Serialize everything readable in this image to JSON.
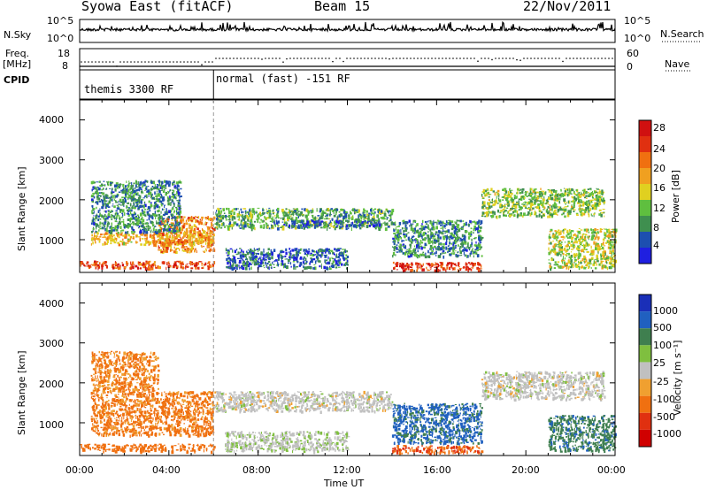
{
  "header": {
    "station": "Syowa East (fitACF)",
    "beam": "Beam 15",
    "date": "22/Nov/2011"
  },
  "top_panels": {
    "nsky_label": "N.Sky",
    "nsky_ticks": [
      "10^5",
      "10^0"
    ],
    "nsearch_label": "N.Search",
    "nsearch_ticks": [
      "10^5",
      "10^0"
    ],
    "freq_label_1": "Freq.",
    "freq_label_2": "[MHz]",
    "freq_ticks": [
      "18",
      "8"
    ],
    "nave_label": "Nave",
    "nave_ticks": [
      "60",
      "0"
    ],
    "cpid_label": "CPID",
    "cpid_segments": [
      {
        "label": "themis 3300 RF",
        "start": 0,
        "end": 6.0
      },
      {
        "label": "normal (fast) -151 RF",
        "start": 6.0,
        "end": 24
      }
    ]
  },
  "colors": {
    "power_scale": [
      "#1f1fe0",
      "#1d4fb0",
      "#3f8f4f",
      "#5fbf3f",
      "#e0d020",
      "#f0a020",
      "#f07010",
      "#e03010",
      "#d01010"
    ],
    "velocity_scale": [
      "#1a2fb8",
      "#2060c0",
      "#3f7f4f",
      "#7fbf3f",
      "#c0c0c0",
      "#f0a030",
      "#f07010",
      "#e03010",
      "#d00000"
    ]
  },
  "chart_data": [
    {
      "type": "heatmap",
      "panel": "power",
      "ylabel": "Slant Range [km]",
      "yticks": [
        "4000",
        "3000",
        "2000",
        "1000"
      ],
      "ylim": [
        180,
        4500
      ],
      "xlim": [
        0,
        24
      ],
      "colorbar_label": "Power [dB]",
      "colorbar_ticks": [
        "28",
        "24",
        "20",
        "16",
        "12",
        "8",
        "4"
      ],
      "colorbar_range": [
        0,
        30
      ],
      "blobs": [
        {
          "t0": 0.0,
          "t1": 6.0,
          "r0": 300,
          "r1": 480,
          "value": 24
        },
        {
          "t0": 0.5,
          "t1": 6.0,
          "r0": 900,
          "r1": 1200,
          "value": 18
        },
        {
          "t0": 3.5,
          "t1": 6.0,
          "r0": 700,
          "r1": 1600,
          "value": 20
        },
        {
          "t0": 0.5,
          "t1": 4.5,
          "r0": 1200,
          "r1": 2500,
          "value": 8
        },
        {
          "t0": 6.0,
          "t1": 14.0,
          "r0": 1300,
          "r1": 1800,
          "value": 10
        },
        {
          "t0": 8.5,
          "t1": 13.5,
          "r0": 1350,
          "r1": 1500,
          "value": 6
        },
        {
          "t0": 14.0,
          "t1": 18.0,
          "r0": 250,
          "r1": 450,
          "value": 26
        },
        {
          "t0": 14.0,
          "t1": 18.0,
          "r0": 600,
          "r1": 1500,
          "value": 8
        },
        {
          "t0": 18.0,
          "t1": 23.5,
          "r0": 1600,
          "r1": 2300,
          "value": 12
        },
        {
          "t0": 21.0,
          "t1": 24.0,
          "r0": 300,
          "r1": 1300,
          "value": 14
        },
        {
          "t0": 6.5,
          "t1": 12.0,
          "r0": 300,
          "r1": 800,
          "value": 6
        }
      ]
    },
    {
      "type": "heatmap",
      "panel": "velocity",
      "ylabel": "Slant Range [km]",
      "yticks": [
        "4000",
        "3000",
        "2000",
        "1000"
      ],
      "ylim": [
        180,
        4500
      ],
      "xlim": [
        0,
        24
      ],
      "xticks": [
        "00:00",
        "04:00",
        "08:00",
        "12:00",
        "16:00",
        "20:00",
        "00:00"
      ],
      "xlabel": "Time UT",
      "colorbar_label": "Velocity [m s⁻¹]",
      "colorbar_ticks": [
        "1000",
        "500",
        "100",
        "25",
        "-25",
        "-100",
        "-500",
        "-1000"
      ],
      "blobs": [
        {
          "t0": 0.0,
          "t1": 6.0,
          "r0": 300,
          "r1": 480,
          "value": -300
        },
        {
          "t0": 0.5,
          "t1": 6.0,
          "r0": 700,
          "r1": 1800,
          "value": -150
        },
        {
          "t0": 0.5,
          "t1": 3.5,
          "r0": 1800,
          "r1": 2800,
          "value": -120
        },
        {
          "t0": 6.0,
          "t1": 14.0,
          "r0": 1300,
          "r1": 1800,
          "value": 0
        },
        {
          "t0": 14.0,
          "t1": 18.0,
          "r0": 250,
          "r1": 450,
          "value": -500
        },
        {
          "t0": 14.0,
          "t1": 18.0,
          "r0": 500,
          "r1": 1500,
          "value": 600
        },
        {
          "t0": 18.0,
          "t1": 23.5,
          "r0": 1600,
          "r1": 2300,
          "value": 0
        },
        {
          "t0": 21.0,
          "t1": 24.0,
          "r0": 300,
          "r1": 1200,
          "value": 400
        },
        {
          "t0": 6.5,
          "t1": 12.0,
          "r0": 300,
          "r1": 800,
          "value": 10
        }
      ]
    }
  ]
}
